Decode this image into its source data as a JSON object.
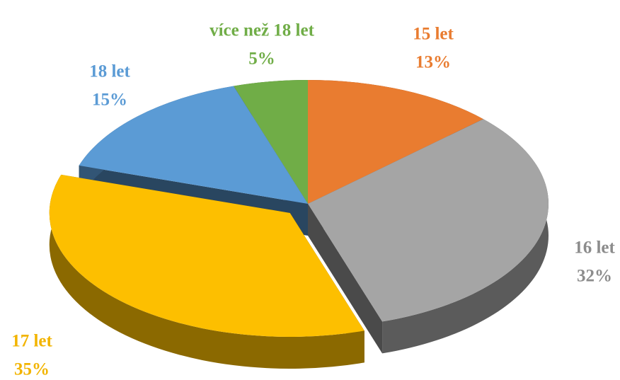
{
  "chart_data": {
    "type": "pie",
    "categories": [
      "15 let",
      "16 let",
      "17 let",
      "18 let",
      "více než 18 let"
    ],
    "values": [
      13,
      32,
      35,
      15,
      5
    ],
    "value_labels": [
      "13%",
      "32%",
      "35%",
      "15%",
      "5%"
    ],
    "colors": [
      "#e97c30",
      "#a5a5a5",
      "#fdbf00",
      "#5b9bd5",
      "#70ad47"
    ],
    "explode": [
      0,
      0,
      0.15,
      0,
      0
    ]
  }
}
